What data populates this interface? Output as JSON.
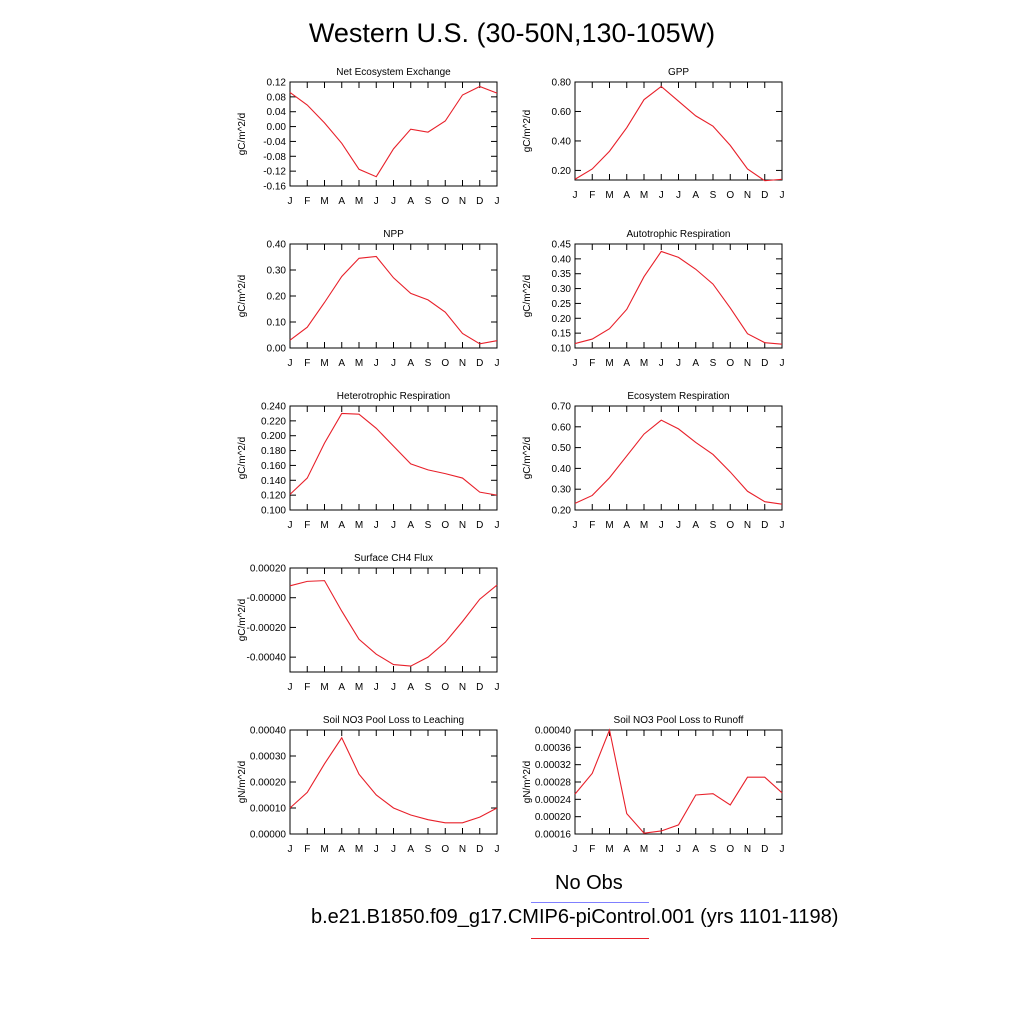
{
  "page": {
    "title": "Western U.S. (30-50N,130-105W)"
  },
  "colors": {
    "model_line": "#e8202a",
    "obs_line": "#7f7fff",
    "axis": "#000000",
    "background": "#ffffff"
  },
  "legend": {
    "obs_label": "No Obs",
    "model_label": "b.e21.B1850.f09_g17.CMIP6-piControl.001 (yrs 1101-1198)"
  },
  "chart_data": [
    {
      "type": "line",
      "title": "Net Ecosystem Exchange",
      "ylabel": "gC/m^2/d",
      "categories": [
        "J",
        "F",
        "M",
        "A",
        "M",
        "J",
        "J",
        "A",
        "S",
        "O",
        "N",
        "D",
        "J"
      ],
      "ylim": [
        -0.16,
        0.12
      ],
      "yticks": [
        "0.12",
        "0.08",
        "0.04",
        "0.00",
        "-0.04",
        "-0.08",
        "-0.12",
        "-0.16"
      ],
      "series": [
        {
          "values": [
            0.092,
            0.058,
            0.01,
            -0.045,
            -0.115,
            -0.135,
            -0.06,
            -0.007,
            -0.015,
            0.015,
            0.085,
            0.108,
            0.09
          ]
        }
      ]
    },
    {
      "type": "line",
      "title": "GPP",
      "ylabel": "gC/m^2/d",
      "categories": [
        "J",
        "F",
        "M",
        "A",
        "M",
        "J",
        "J",
        "A",
        "S",
        "O",
        "N",
        "D",
        "J"
      ],
      "ylim": [
        0.135,
        0.8
      ],
      "yticks": [
        "0.80",
        "0.60",
        "0.40",
        "0.20"
      ],
      "series": [
        {
          "values": [
            0.14,
            0.21,
            0.33,
            0.49,
            0.68,
            0.77,
            0.67,
            0.57,
            0.5,
            0.37,
            0.21,
            0.13,
            0.14
          ]
        }
      ]
    },
    {
      "type": "line",
      "title": "NPP",
      "ylabel": "gC/m^2/d",
      "categories": [
        "J",
        "F",
        "M",
        "A",
        "M",
        "J",
        "J",
        "A",
        "S",
        "O",
        "N",
        "D",
        "J"
      ],
      "ylim": [
        0.0,
        0.4
      ],
      "yticks": [
        "0.40",
        "0.30",
        "0.20",
        "0.10",
        "0.00"
      ],
      "series": [
        {
          "values": [
            0.03,
            0.08,
            0.175,
            0.275,
            0.345,
            0.352,
            0.27,
            0.21,
            0.185,
            0.138,
            0.056,
            0.016,
            0.028
          ]
        }
      ]
    },
    {
      "type": "line",
      "title": "Autotrophic Respiration",
      "ylabel": "gC/m^2/d",
      "categories": [
        "J",
        "F",
        "M",
        "A",
        "M",
        "J",
        "J",
        "A",
        "S",
        "O",
        "N",
        "D",
        "J"
      ],
      "ylim": [
        0.1,
        0.45
      ],
      "yticks": [
        "0.45",
        "0.40",
        "0.35",
        "0.30",
        "0.25",
        "0.20",
        "0.15",
        "0.10"
      ],
      "series": [
        {
          "values": [
            0.115,
            0.13,
            0.165,
            0.23,
            0.34,
            0.425,
            0.405,
            0.365,
            0.315,
            0.235,
            0.148,
            0.118,
            0.113
          ]
        }
      ]
    },
    {
      "type": "line",
      "title": "Heterotrophic Respiration",
      "ylabel": "gC/m^2/d",
      "categories": [
        "J",
        "F",
        "M",
        "A",
        "M",
        "J",
        "J",
        "A",
        "S",
        "O",
        "N",
        "D",
        "J"
      ],
      "ylim": [
        0.1,
        0.24
      ],
      "yticks": [
        "0.240",
        "0.220",
        "0.200",
        "0.180",
        "0.160",
        "0.140",
        "0.120",
        "0.100"
      ],
      "series": [
        {
          "values": [
            0.121,
            0.143,
            0.19,
            0.23,
            0.229,
            0.21,
            0.186,
            0.162,
            0.154,
            0.149,
            0.143,
            0.124,
            0.12
          ]
        }
      ]
    },
    {
      "type": "line",
      "title": "Ecosystem Respiration",
      "ylabel": "gC/m^2/d",
      "categories": [
        "J",
        "F",
        "M",
        "A",
        "M",
        "J",
        "J",
        "A",
        "S",
        "O",
        "N",
        "D",
        "J"
      ],
      "ylim": [
        0.2,
        0.7
      ],
      "yticks": [
        "0.70",
        "0.60",
        "0.50",
        "0.40",
        "0.30",
        "0.20"
      ],
      "series": [
        {
          "values": [
            0.232,
            0.27,
            0.355,
            0.46,
            0.565,
            0.632,
            0.59,
            0.525,
            0.467,
            0.383,
            0.29,
            0.24,
            0.228
          ]
        }
      ]
    },
    {
      "type": "line",
      "title": "Surface CH4 Flux",
      "ylabel": "gC/m^2/d",
      "categories": [
        "J",
        "F",
        "M",
        "A",
        "M",
        "J",
        "J",
        "A",
        "S",
        "O",
        "N",
        "D",
        "J"
      ],
      "ylim": [
        -0.0005,
        0.0002
      ],
      "yticks": [
        "0.00020",
        "-0.00000",
        "-0.00020",
        "-0.00040"
      ],
      "series": [
        {
          "values": [
            8e-05,
            0.00011,
            0.000115,
            -9e-05,
            -0.00028,
            -0.00038,
            -0.00045,
            -0.00046,
            -0.0004,
            -0.0003,
            -0.00016,
            -1e-05,
            8.5e-05
          ]
        }
      ]
    },
    {
      "type": "line",
      "title": "Soil NO3 Pool Loss to Leaching",
      "ylabel": "gN/m^2/d",
      "categories": [
        "J",
        "F",
        "M",
        "A",
        "M",
        "J",
        "J",
        "A",
        "S",
        "O",
        "N",
        "D",
        "J"
      ],
      "ylim": [
        0.0,
        0.0004
      ],
      "yticks": [
        "0.00040",
        "0.00030",
        "0.00020",
        "0.00010",
        "0.00000"
      ],
      "series": [
        {
          "values": [
            0.0001,
            0.00016,
            0.00027,
            0.00037,
            0.00023,
            0.00015,
            0.0001,
            7.3e-05,
            5.5e-05,
            4.3e-05,
            4.3e-05,
            6.5e-05,
            0.0001
          ]
        }
      ]
    },
    {
      "type": "line",
      "title": "Soil NO3 Pool Loss to Runoff",
      "ylabel": "gN/m^2/d",
      "categories": [
        "J",
        "F",
        "M",
        "A",
        "M",
        "J",
        "J",
        "A",
        "S",
        "O",
        "N",
        "D",
        "J"
      ],
      "ylim": [
        0.00016,
        0.0004
      ],
      "yticks": [
        "0.00040",
        "0.00036",
        "0.00032",
        "0.00028",
        "0.00024",
        "0.00020",
        "0.00016"
      ],
      "series": [
        {
          "values": [
            0.000252,
            0.0003,
            0.0004,
            0.000207,
            0.000162,
            0.000167,
            0.000181,
            0.00025,
            0.000253,
            0.000227,
            0.000291,
            0.000291,
            0.000255
          ]
        }
      ]
    }
  ]
}
